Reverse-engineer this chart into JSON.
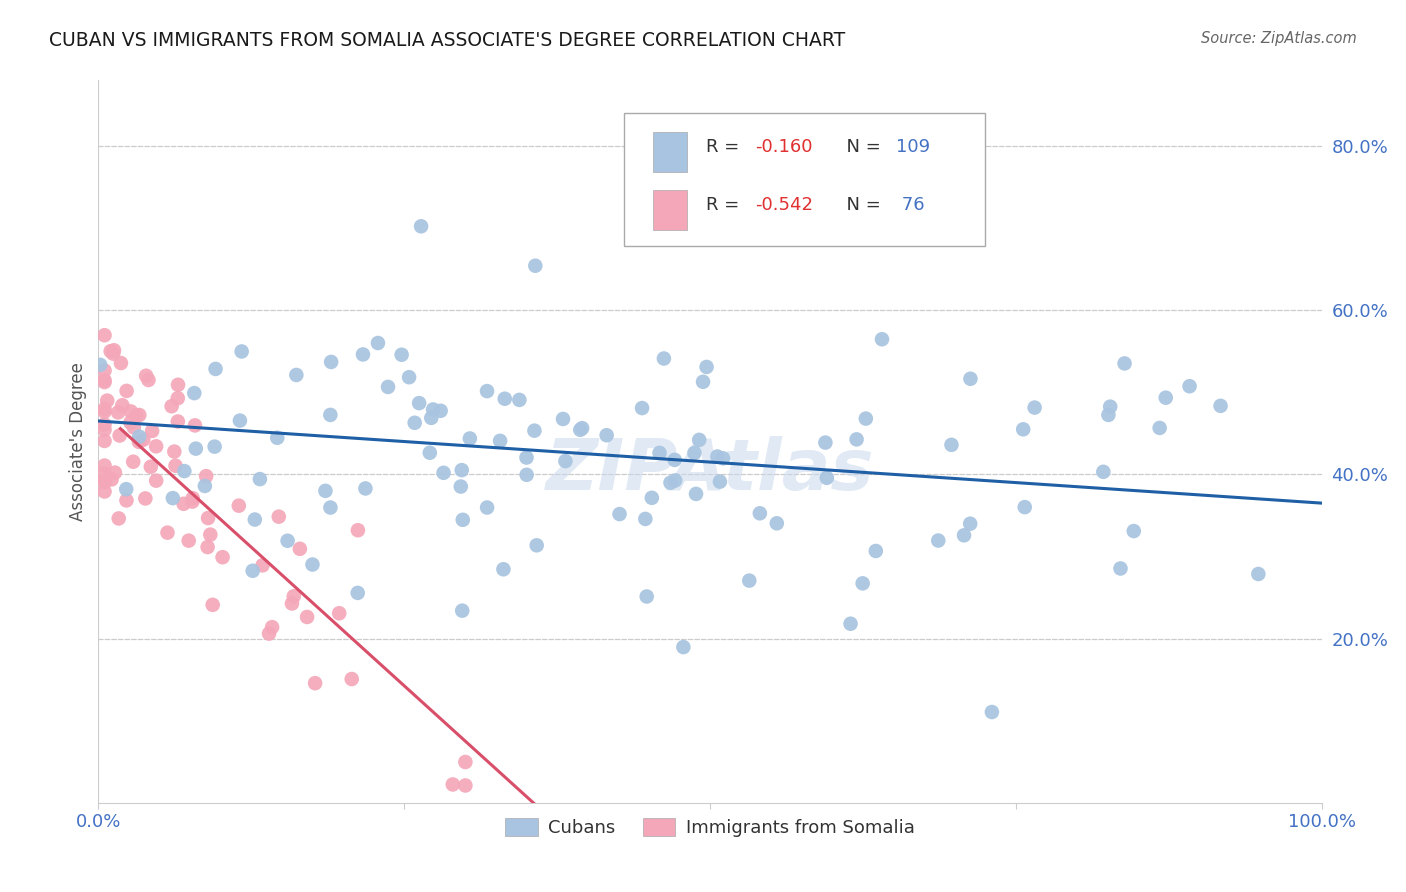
{
  "title": "CUBAN VS IMMIGRANTS FROM SOMALIA ASSOCIATE'S DEGREE CORRELATION CHART",
  "source": "Source: ZipAtlas.com",
  "ylabel": "Associate's Degree",
  "blue_color": "#a8c4e0",
  "pink_color": "#f4a7b9",
  "line_blue": "#1f5fa6",
  "line_pink": "#d94f6a",
  "watermark": "ZIPAtlas",
  "xlim": [
    0.0,
    1.0
  ],
  "ylim": [
    0.0,
    0.88
  ],
  "grid_yticks": [
    0.2,
    0.4,
    0.6,
    0.8
  ],
  "grid_color": "#cccccc",
  "background_color": "#ffffff",
  "tick_color": "#4472c4",
  "right_tick_labels": [
    "20.0%",
    "40.0%",
    "60.0%",
    "80.0%"
  ],
  "bottom_tick_labels_show": [
    "0.0%",
    "100.0%"
  ],
  "legend_r1_color": "#e05050",
  "legend_n1_color": "#4472c4",
  "legend_r2_color": "#e05050",
  "legend_n2_color": "#4472c4"
}
